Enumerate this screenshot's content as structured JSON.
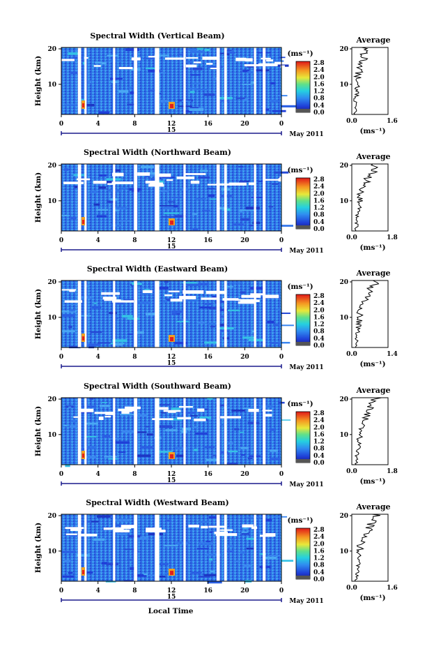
{
  "chart_data": [
    {
      "type": "heatmap",
      "title": "Spectral Width (Vertical Beam)",
      "ylabel": "Height (km)",
      "xlabel": "",
      "xticks": [
        "0",
        "4",
        "8",
        "12",
        "16",
        "20",
        "0"
      ],
      "yticks": [
        "20",
        "10"
      ],
      "date_label": "15",
      "date_suffix": "May 2011",
      "colorbar": {
        "unit": "(ms⁻¹)",
        "ticks": [
          "2.8",
          "2.4",
          "2.0",
          "1.6",
          "1.2",
          "0.8",
          "0.4",
          "0.0"
        ]
      },
      "profile": {
        "title": "Average",
        "xticks": [
          "0.0",
          "1.6"
        ],
        "xlim": [
          0,
          1.6
        ],
        "yticks": [
          "20",
          "10"
        ],
        "ylim": [
          2,
          20
        ],
        "xlabel": "(ms⁻¹)"
      }
    },
    {
      "type": "heatmap",
      "title": "Spectral Width (Northward Beam)",
      "ylabel": "Height (km)",
      "xlabel": "",
      "xticks": [
        "0",
        "4",
        "8",
        "12",
        "16",
        "20",
        "0"
      ],
      "yticks": [
        "20",
        "10"
      ],
      "date_label": "15",
      "date_suffix": "May 2011",
      "colorbar": {
        "unit": "(ms⁻¹)",
        "ticks": [
          "2.8",
          "2.4",
          "2.0",
          "1.6",
          "1.2",
          "0.8",
          "0.4",
          "0.0"
        ]
      },
      "profile": {
        "title": "Average",
        "xticks": [
          "0.0",
          "1.8"
        ],
        "xlim": [
          0,
          1.8
        ],
        "yticks": [
          "20",
          "10"
        ],
        "ylim": [
          2,
          20
        ],
        "xlabel": "(ms⁻¹)"
      }
    },
    {
      "type": "heatmap",
      "title": "Spectral Width (Eastward Beam)",
      "ylabel": "Height (km)",
      "xlabel": "",
      "xticks": [
        "0",
        "4",
        "8",
        "12",
        "16",
        "20",
        "0"
      ],
      "yticks": [
        "20",
        "10"
      ],
      "date_label": "15",
      "date_suffix": "May 2011",
      "colorbar": {
        "unit": "(ms⁻¹)",
        "ticks": [
          "2.8",
          "2.4",
          "2.0",
          "1.6",
          "1.2",
          "0.8",
          "0.4",
          "0.0"
        ]
      },
      "profile": {
        "title": "Average",
        "xticks": [
          "0.0",
          "1.4"
        ],
        "xlim": [
          0,
          1.4
        ],
        "yticks": [
          "20",
          "10"
        ],
        "ylim": [
          2,
          20
        ],
        "xlabel": "(ms⁻¹)"
      }
    },
    {
      "type": "heatmap",
      "title": "Spectral Width (Southward Beam)",
      "ylabel": "Height (km)",
      "xlabel": "",
      "xticks": [
        "0",
        "4",
        "8",
        "12",
        "16",
        "20",
        "0"
      ],
      "yticks": [
        "20",
        "10"
      ],
      "date_label": "15",
      "date_suffix": "May 2011",
      "colorbar": {
        "unit": "(ms⁻¹)",
        "ticks": [
          "2.8",
          "2.4",
          "2.0",
          "1.6",
          "1.2",
          "0.8",
          "0.4",
          "0.0"
        ]
      },
      "profile": {
        "title": "Average",
        "xticks": [
          "0.0",
          "1.8"
        ],
        "xlim": [
          0,
          1.8
        ],
        "yticks": [
          "20",
          "10"
        ],
        "ylim": [
          2,
          20
        ],
        "xlabel": "(ms⁻¹)"
      }
    },
    {
      "type": "heatmap",
      "title": "Spectral Width (Westward Beam)",
      "ylabel": "Height (km)",
      "xlabel": "Local Time",
      "xticks": [
        "0",
        "4",
        "8",
        "12",
        "16",
        "20",
        "0"
      ],
      "yticks": [
        "20",
        "10"
      ],
      "date_label": "15",
      "date_suffix": "May 2011",
      "colorbar": {
        "unit": "(ms⁻¹)",
        "ticks": [
          "2.8",
          "2.4",
          "2.0",
          "1.6",
          "1.2",
          "0.8",
          "0.4",
          "0.0"
        ]
      },
      "profile": {
        "title": "Average",
        "xticks": [
          "0.0",
          "1.6"
        ],
        "xlim": [
          0,
          1.6
        ],
        "yticks": [
          "20",
          "10"
        ],
        "ylim": [
          2,
          20
        ],
        "xlabel": "(ms⁻¹)"
      }
    }
  ]
}
